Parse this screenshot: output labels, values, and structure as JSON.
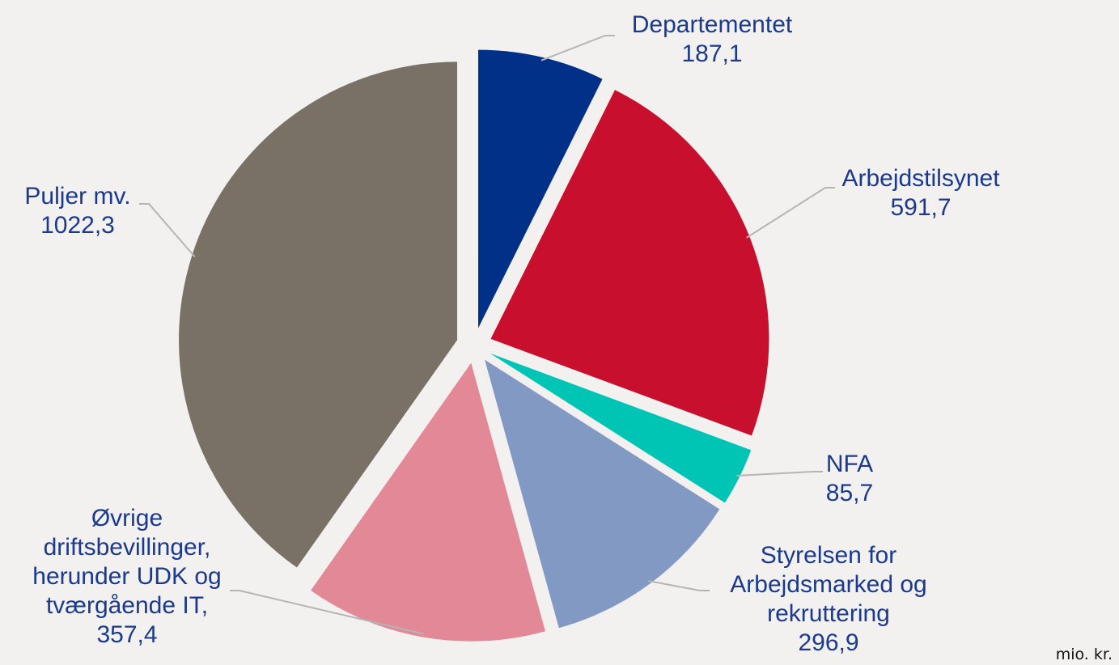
{
  "chart_data": {
    "type": "pie",
    "unit": "mio. kr.",
    "slices": [
      {
        "label": [
          "Departementet"
        ],
        "value_text": "187,1",
        "value": 187.1,
        "color": "#003087"
      },
      {
        "label": [
          "Arbejdstilsynet"
        ],
        "value_text": "591,7",
        "value": 591.7,
        "color": "#c8102e"
      },
      {
        "label": [
          "NFA"
        ],
        "value_text": "85,7",
        "value": 85.7,
        "color": "#00c5b5"
      },
      {
        "label": [
          "Styrelsen for",
          "Arbejdsmarked og",
          "rekruttering"
        ],
        "value_text": "296,9",
        "value": 296.9,
        "color": "#8299c4"
      },
      {
        "label": [
          "Øvrige",
          "driftsbevillinger,",
          "herunder UDK og",
          "tværgående IT,"
        ],
        "value_text": "357,4",
        "value": 357.4,
        "color": "#e38896"
      },
      {
        "label": [
          "Puljer mv."
        ],
        "value_text": "1022,3",
        "value": 1022.3,
        "color": "#797166"
      }
    ]
  }
}
